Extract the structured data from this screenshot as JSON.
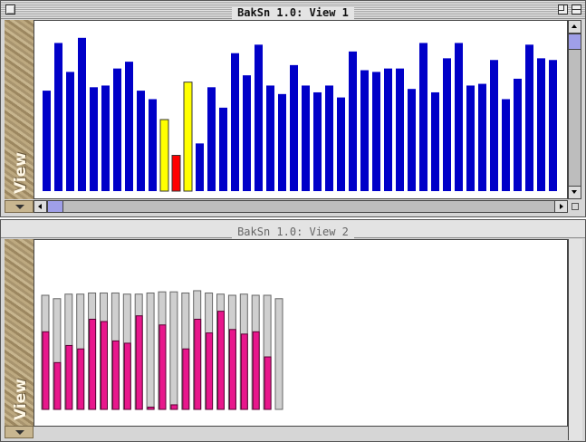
{
  "window1": {
    "title": "BakSn 1.0: View 1",
    "sidebar_label": "View"
  },
  "window2": {
    "title": "BakSn 1.0: View 2",
    "sidebar_label": "View"
  },
  "colors": {
    "blue_bar": "#0000c8",
    "highlight_yellow": "#ffff00",
    "highlight_red": "#ff0000",
    "pink_bar": "#e8178c",
    "gray_bar": "#cfcfcf"
  },
  "chart_data": [
    {
      "type": "bar",
      "axes_visible": false,
      "ylim": [
        0,
        100
      ],
      "values": [
        59,
        87,
        70,
        90,
        61,
        62,
        72,
        76,
        59,
        54,
        42,
        21,
        64,
        28,
        61,
        49,
        81,
        68,
        86,
        62,
        57,
        74,
        62,
        58,
        62,
        55,
        82,
        71,
        70,
        72,
        72,
        60,
        87,
        58,
        78,
        87,
        62,
        63,
        77,
        54,
        66,
        86,
        78,
        77
      ],
      "bar_colors": [
        "blue",
        "blue",
        "blue",
        "blue",
        "blue",
        "blue",
        "blue",
        "blue",
        "blue",
        "blue",
        "yellow",
        "red",
        "yellow",
        "blue",
        "blue",
        "blue",
        "blue",
        "blue",
        "blue",
        "blue",
        "blue",
        "blue",
        "blue",
        "blue",
        "blue",
        "blue",
        "blue",
        "blue",
        "blue",
        "blue",
        "blue",
        "blue",
        "blue",
        "blue",
        "blue",
        "blue",
        "blue",
        "blue",
        "blue",
        "blue",
        "blue",
        "blue",
        "blue",
        "blue"
      ]
    },
    {
      "type": "bar",
      "axes_visible": false,
      "ylim": [
        0,
        100
      ],
      "series": [
        {
          "values": [
            100,
            97,
            101,
            101,
            102,
            102,
            102,
            101,
            101,
            102,
            103,
            103,
            102,
            104,
            102,
            101,
            100,
            101,
            100,
            100,
            97
          ]
        },
        {
          "values": [
            68,
            41,
            56,
            53,
            79,
            77,
            60,
            58,
            82,
            2,
            74,
            4,
            53,
            79,
            67,
            86,
            70,
            66,
            68,
            46
          ]
        }
      ]
    }
  ]
}
